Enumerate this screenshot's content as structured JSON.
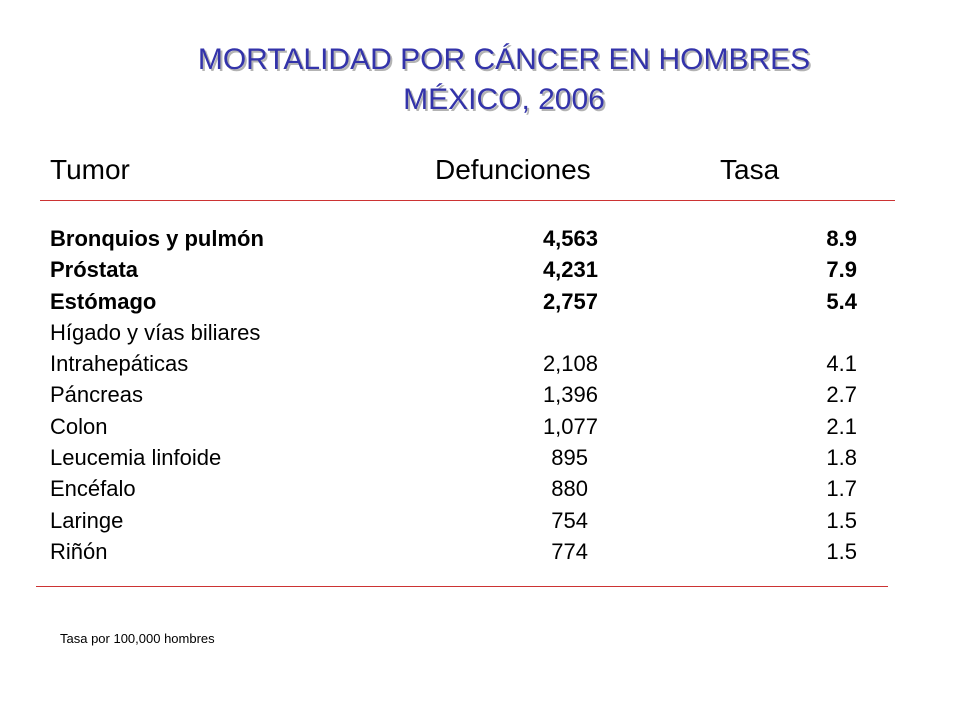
{
  "title": {
    "line1": "MORTALIDAD POR CÁNCER EN HOMBRES",
    "line2": "MÉXICO, 2006"
  },
  "colors": {
    "title": "#3333aa",
    "rule": "#cc3333"
  },
  "table": {
    "headers": {
      "tumor": "Tumor",
      "defunciones": "Defunciones",
      "tasa": "Tasa"
    },
    "rows": [
      {
        "tumor": "Bronquios y pulmón",
        "defunciones": "4,563",
        "tasa": "8.9",
        "bold": true
      },
      {
        "tumor": "Próstata",
        "defunciones": "4,231",
        "tasa": "7.9",
        "bold": true
      },
      {
        "tumor": "Estómago",
        "defunciones": "2,757",
        "tasa": "5.4",
        "bold": true
      },
      {
        "tumor": "Hígado y vías biliares",
        "defunciones": "",
        "tasa": "",
        "bold": false
      },
      {
        "tumor": "Intrahepáticas",
        "defunciones": "2,108",
        "tasa": "4.1",
        "bold": false
      },
      {
        "tumor": "Páncreas",
        "defunciones": "1,396",
        "tasa": "2.7",
        "bold": false
      },
      {
        "tumor": "Colon",
        "defunciones": "1,077",
        "tasa": "2.1",
        "bold": false
      },
      {
        "tumor": "Leucemia linfoide",
        "defunciones": "895",
        "tasa": "1.8",
        "bold": false
      },
      {
        "tumor": "Encéfalo",
        "defunciones": "880",
        "tasa": "1.7",
        "bold": false
      },
      {
        "tumor": "Laringe",
        "defunciones": "754",
        "tasa": "1.5",
        "bold": false
      },
      {
        "tumor": "Riñón",
        "defunciones": "774",
        "tasa": "1.5",
        "bold": false
      }
    ]
  },
  "footnote": "Tasa por 100,000 hombres"
}
